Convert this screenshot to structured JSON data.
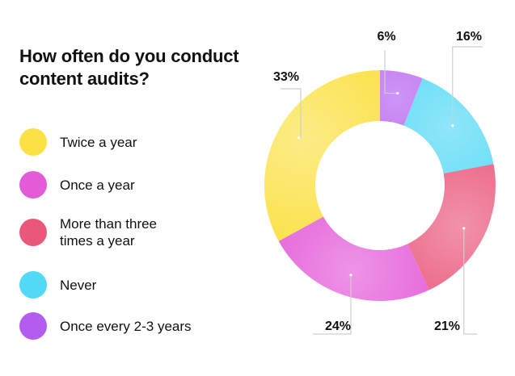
{
  "chart_data": {
    "type": "pie",
    "title": "How often do you conduct content audits?",
    "donut": true,
    "legend_placement": "left",
    "categories": [
      "Once every 2-3 years",
      "Never",
      "More than three times a year",
      "Once a year",
      "Twice a year"
    ],
    "values": [
      6,
      16,
      21,
      24,
      33
    ],
    "labels": [
      "6%",
      "16%",
      "21%",
      "24%",
      "33%"
    ],
    "colors": [
      "#b45cf0",
      "#52d9f5",
      "#e9577a",
      "#e45bd8",
      "#fbe146"
    ]
  },
  "legend": [
    {
      "label": "Twice a year",
      "color": "#fbe146"
    },
    {
      "label": "Once a year",
      "color": "#e45bd8"
    },
    {
      "label": "More than three\ntimes a year",
      "color": "#e9577a"
    },
    {
      "label": "Never",
      "color": "#52d9f5"
    },
    {
      "label": "Once every 2-3 years",
      "color": "#b45cf0"
    }
  ]
}
